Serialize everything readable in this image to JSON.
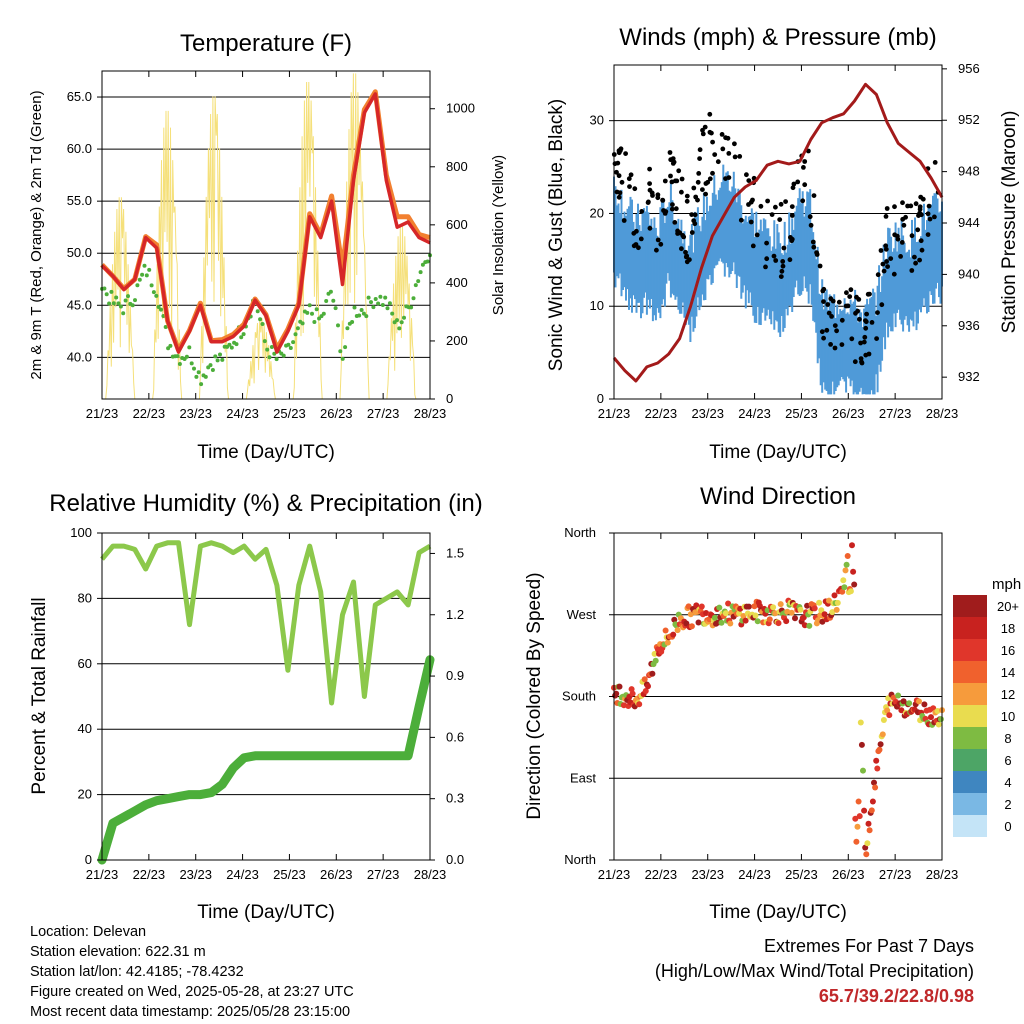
{
  "chart_data": [
    {
      "type": "line",
      "title": "Temperature (F)",
      "xlabel": "Time (Day/UTC)",
      "ylabel": "2m & 9m T (Red, Orange) & 2m Td (Green)",
      "y2label": "Solar Insolation (Yellow)",
      "x_ticks": [
        "21/23",
        "22/23",
        "23/23",
        "24/23",
        "25/23",
        "26/23",
        "27/23",
        "28/23"
      ],
      "y_ticks": [
        "40.0",
        "45.0",
        "50.0",
        "55.0",
        "60.0",
        "65.0"
      ],
      "y2_ticks": [
        "0",
        "200",
        "400",
        "600",
        "800",
        "1000"
      ],
      "ylim": [
        36,
        67.5
      ],
      "y2lim": [
        0,
        1130
      ],
      "grid": true,
      "colors": {
        "t2m": "#d62728",
        "t9m": "#f28030",
        "td": "#4cae3a",
        "solar": "#f5e07a"
      },
      "series": [
        {
          "values": [
            48.8,
            47.8,
            46.5,
            47.5,
            51.5,
            50.5,
            43.5,
            40.5,
            42.5,
            45,
            41.5,
            41.5,
            42,
            43,
            45.5,
            44,
            40.5,
            42.5,
            45,
            53.5,
            51.5,
            55,
            47,
            57,
            63.5,
            65.3,
            57,
            52.5,
            53,
            51.5,
            51
          ]
        },
        {
          "values": [
            48.9,
            47.8,
            46.6,
            47.5,
            51.6,
            50.8,
            43.5,
            40.7,
            42.6,
            45.2,
            41.6,
            41.7,
            42.2,
            43.2,
            45.6,
            44.1,
            40.8,
            42.7,
            45.2,
            53.8,
            51.8,
            55.5,
            48.5,
            57.5,
            63.8,
            65.5,
            57.5,
            53.5,
            53.5,
            51.8,
            51.5
          ]
        },
        {
          "values": [
            46.8,
            45.3,
            44.8,
            46,
            48.5,
            46.5,
            41.5,
            40,
            40.5,
            38,
            39.5,
            40,
            41.5,
            43,
            45.8,
            41,
            39.8,
            40.5,
            42.5,
            44.5,
            43.5,
            46.5,
            40,
            44.5,
            44.5,
            45.8,
            45.3,
            43,
            44.5,
            48,
            50.5
          ]
        }
      ],
      "solar": {
        "days": [
          "21/23",
          "22/23",
          "23/23",
          "24/23",
          "25/23",
          "26/23",
          "27/23"
        ],
        "peaks": [
          700,
          1000,
          1050,
          280,
          1100,
          1130,
          600
        ]
      }
    },
    {
      "type": "line",
      "title": "Winds (mph) & Pressure (mb)",
      "xlabel": "Time (Day/UTC)",
      "ylabel": "Sonic Wind & Gust (Blue, Black)",
      "y2label": "Station Pressure (Maroon)",
      "x_ticks": [
        "21/23",
        "22/23",
        "23/23",
        "24/23",
        "25/23",
        "26/23",
        "27/23",
        "28/23"
      ],
      "y_ticks": [
        "0",
        "10",
        "20",
        "30"
      ],
      "y2_ticks": [
        "932",
        "936",
        "940",
        "944",
        "948",
        "952",
        "956"
      ],
      "ylim": [
        0,
        36
      ],
      "y2lim": [
        930.3,
        956.3
      ],
      "grid": true,
      "colors": {
        "wind": "#4f9ad8",
        "gust": "#000000",
        "pressure": "#a31a1a"
      },
      "series": [
        {
          "values": [
            18,
            16,
            14,
            15,
            13,
            17,
            14,
            12,
            15,
            17,
            19,
            18,
            15,
            14,
            13,
            12,
            13,
            17,
            16,
            6,
            5,
            6,
            5,
            4,
            6,
            12,
            13,
            12,
            14,
            15,
            16
          ]
        },
        {
          "values": [
            25,
            22,
            19,
            21,
            18,
            24,
            20,
            16,
            24,
            27,
            26,
            25,
            21,
            19,
            17,
            16,
            17,
            22,
            22,
            9,
            8,
            9,
            7,
            6,
            9,
            16,
            17,
            16,
            18,
            21,
            22
          ]
        },
        {
          "values": [
            933.5,
            932.5,
            931.7,
            932.8,
            933.1,
            933.8,
            935,
            937.5,
            940.5,
            943,
            944.5,
            946,
            946.8,
            947.3,
            948.5,
            948.8,
            948.6,
            948.8,
            950.5,
            951.8,
            952.2,
            952.5,
            953.5,
            954.8,
            954,
            951.8,
            950.2,
            949.5,
            948.8,
            947.5,
            946
          ]
        }
      ]
    },
    {
      "type": "line",
      "title": "Relative Humidity (%) & Precipitation (in)",
      "xlabel": "Time (Day/UTC)",
      "ylabel": "Percent & Total Rainfall",
      "x_ticks": [
        "21/23",
        "22/23",
        "23/23",
        "24/23",
        "25/23",
        "26/23",
        "27/23",
        "28/23"
      ],
      "y_ticks": [
        "0",
        "20",
        "40",
        "60",
        "80",
        "100"
      ],
      "y2_ticks": [
        "0.0",
        "0.3",
        "0.6",
        "0.9",
        "1.2",
        "1.5"
      ],
      "ylim": [
        0,
        100
      ],
      "y2lim": [
        0,
        1.6
      ],
      "grid": true,
      "colors": {
        "rh": "#8cc84b",
        "precip": "#4cae3a"
      },
      "series": [
        {
          "values": [
            92,
            96,
            96,
            95,
            89,
            96,
            97,
            97,
            72,
            96,
            97,
            96,
            94,
            96,
            92,
            95,
            84,
            58,
            84,
            96,
            82,
            48,
            75,
            85,
            50,
            78,
            80,
            82,
            78,
            94,
            96
          ]
        },
        {
          "values": [
            0,
            0.18,
            0.21,
            0.24,
            0.27,
            0.29,
            0.3,
            0.31,
            0.32,
            0.32,
            0.33,
            0.37,
            0.45,
            0.5,
            0.51,
            0.51,
            0.51,
            0.51,
            0.51,
            0.51,
            0.51,
            0.51,
            0.51,
            0.51,
            0.51,
            0.51,
            0.51,
            0.51,
            0.51,
            0.75,
            0.98
          ]
        }
      ]
    },
    {
      "type": "scatter",
      "title": "Wind Direction",
      "xlabel": "Time (Day/UTC)",
      "ylabel": "Direction (Colored By Speed)",
      "x_ticks": [
        "21/23",
        "22/23",
        "23/23",
        "24/23",
        "25/23",
        "26/23",
        "27/23",
        "28/23"
      ],
      "y_ticks": [
        "North",
        "East",
        "South",
        "West",
        "North"
      ],
      "ylim": [
        0,
        360
      ],
      "grid": true,
      "legend": {
        "title": "mph",
        "labels": [
          "20+",
          "18",
          "16",
          "14",
          "12",
          "10",
          "8",
          "6",
          "4",
          "2",
          "0"
        ]
      },
      "colorbar": [
        "#a01c1c",
        "#c8221f",
        "#e0362b",
        "#f0612d",
        "#f69b3c",
        "#e9dc4f",
        "#7ebb42",
        "#4da566",
        "#3f86c0",
        "#7ab8e4",
        "#c4e4f7"
      ],
      "series": [
        {
          "values": [
            185,
            182,
            176,
            190,
            235,
            245,
            265,
            268,
            272,
            270,
            272,
            270,
            272,
            273,
            272,
            272,
            275,
            268,
            270,
            272,
            278,
            300,
            355,
            10,
            100,
            170,
            175,
            168,
            165,
            160,
            160
          ]
        }
      ]
    }
  ],
  "footer": {
    "location": "Location: Delevan",
    "elevation": "Station elevation: 622.31 m",
    "latlon": "Station lat/lon: 42.4185; -78.4232",
    "created": "Figure created on Wed, 2025-05-28, at 23:27 UTC",
    "recent": "Most recent data timestamp: 2025/05/28 23:15:00"
  },
  "extremes": {
    "title": "Extremes For Past 7 Days",
    "subtitle": "(High/Low/Max Wind/Total Precipitation)",
    "values": "65.7/39.2/22.8/0.98"
  }
}
